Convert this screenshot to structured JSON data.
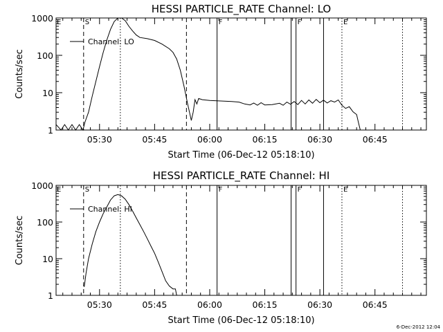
{
  "chart_data": [
    {
      "type": "line",
      "title": "HESSI PARTICLE_RATE Channel: LO",
      "xlabel": "Start Time (06-Dec-12 05:18:10)",
      "ylabel": "Counts/sec",
      "yscale": "log",
      "ylim": [
        1,
        1000
      ],
      "xlim": [
        "05:18:10",
        "06:59:00"
      ],
      "x_ticks": [
        "05:30",
        "05:45",
        "06:00",
        "06:15",
        "06:30",
        "06:45"
      ],
      "y_ticks": [
        "1",
        "10",
        "100",
        "1000"
      ],
      "legend": "top-left",
      "series": [
        {
          "name": "Channel: LO",
          "points": [
            [
              "05:18:10",
              1.4
            ],
            [
              "05:19:30",
              1.0
            ],
            [
              "05:20:30",
              1.4
            ],
            [
              "05:21:30",
              1.0
            ],
            [
              "05:22:30",
              1.4
            ],
            [
              "05:23:30",
              1.0
            ],
            [
              "05:24:30",
              1.4
            ],
            [
              "05:25:30",
              1.0
            ],
            [
              "05:26:00",
              1.6
            ],
            [
              "05:27:00",
              3.0
            ],
            [
              "05:28:00",
              8.0
            ],
            [
              "05:29:00",
              20
            ],
            [
              "05:30:00",
              50
            ],
            [
              "05:31:00",
              120
            ],
            [
              "05:32:00",
              260
            ],
            [
              "05:33:00",
              500
            ],
            [
              "05:34:00",
              800
            ],
            [
              "05:35:00",
              1000
            ],
            [
              "05:36:00",
              1000
            ],
            [
              "05:37:00",
              850
            ],
            [
              "05:38:00",
              600
            ],
            [
              "05:39:00",
              450
            ],
            [
              "05:40:00",
              350
            ],
            [
              "05:41:00",
              300
            ],
            [
              "05:43:00",
              280
            ],
            [
              "05:45:00",
              250
            ],
            [
              "05:47:00",
              200
            ],
            [
              "05:49:00",
              150
            ],
            [
              "05:50:00",
              120
            ],
            [
              "05:51:00",
              80
            ],
            [
              "05:52:00",
              40
            ],
            [
              "05:53:00",
              15
            ],
            [
              "05:54:00",
              5
            ],
            [
              "05:54:40",
              2.5
            ],
            [
              "05:55:00",
              1.8
            ],
            [
              "05:55:30",
              3.0
            ],
            [
              "05:56:00",
              6.5
            ],
            [
              "05:56:30",
              5.0
            ],
            [
              "05:57:00",
              7.0
            ],
            [
              "05:58:00",
              6.5
            ],
            [
              "06:00:00",
              6.2
            ],
            [
              "06:03:00",
              6.0
            ],
            [
              "06:06:00",
              5.8
            ],
            [
              "06:08:00",
              5.6
            ],
            [
              "06:09:30",
              5.0
            ],
            [
              "06:11:00",
              4.7
            ],
            [
              "06:12:00",
              5.3
            ],
            [
              "06:13:00",
              4.6
            ],
            [
              "06:14:00",
              5.4
            ],
            [
              "06:15:00",
              4.7
            ],
            [
              "06:17:00",
              4.8
            ],
            [
              "06:19:00",
              5.2
            ],
            [
              "06:20:00",
              4.6
            ],
            [
              "06:21:00",
              5.6
            ],
            [
              "06:22:00",
              4.9
            ],
            [
              "06:23:00",
              5.8
            ],
            [
              "06:24:00",
              4.8
            ],
            [
              "06:25:00",
              6.2
            ],
            [
              "06:26:00",
              5.0
            ],
            [
              "06:27:00",
              6.4
            ],
            [
              "06:28:00",
              5.2
            ],
            [
              "06:29:00",
              6.6
            ],
            [
              "06:30:00",
              5.4
            ],
            [
              "06:31:00",
              6.3
            ],
            [
              "06:32:00",
              5.3
            ],
            [
              "06:33:00",
              6.1
            ],
            [
              "06:34:00",
              5.6
            ],
            [
              "06:35:00",
              6.4
            ],
            [
              "06:36:00",
              4.6
            ],
            [
              "06:37:00",
              3.8
            ],
            [
              "06:38:00",
              4.2
            ],
            [
              "06:39:00",
              3.1
            ],
            [
              "06:40:00",
              2.6
            ],
            [
              "06:40:30",
              1.6
            ],
            [
              "06:41:00",
              1.0
            ]
          ]
        }
      ],
      "markers": [
        {
          "time": "05:25:40",
          "style": "dashed",
          "label": "S"
        },
        {
          "time": "05:35:40",
          "style": "dotted",
          "label": ""
        },
        {
          "time": "05:53:40",
          "style": "dashed",
          "label": ""
        },
        {
          "time": "06:02:00",
          "style": "solid",
          "label": "F"
        },
        {
          "time": "06:22:10",
          "style": "solid",
          "label": ""
        },
        {
          "time": "06:23:30",
          "style": "solid",
          "label": "F"
        },
        {
          "time": "06:31:00",
          "style": "solid",
          "label": ""
        },
        {
          "time": "06:36:00",
          "style": "dotted",
          "label": "E"
        },
        {
          "time": "06:52:30",
          "style": "dotted",
          "label": ""
        }
      ]
    },
    {
      "type": "line",
      "title": "HESSI PARTICLE_RATE Channel: HI",
      "xlabel": "Start Time (06-Dec-12 05:18:10)",
      "ylabel": "Counts/sec",
      "yscale": "log",
      "ylim": [
        1,
        1000
      ],
      "xlim": [
        "05:18:10",
        "06:59:00"
      ],
      "x_ticks": [
        "05:30",
        "05:45",
        "06:00",
        "06:15",
        "06:30",
        "06:45"
      ],
      "y_ticks": [
        "1",
        "10",
        "100",
        "1000"
      ],
      "legend": "top-left",
      "series": [
        {
          "name": "Channel: HI",
          "points": [
            [
              "05:25:50",
              1.7
            ],
            [
              "05:26:20",
              4.0
            ],
            [
              "05:27:00",
              10
            ],
            [
              "05:28:00",
              25
            ],
            [
              "05:29:00",
              55
            ],
            [
              "05:30:00",
              100
            ],
            [
              "05:31:00",
              170
            ],
            [
              "05:32:00",
              260
            ],
            [
              "05:33:00",
              400
            ],
            [
              "05:34:00",
              520
            ],
            [
              "05:35:00",
              560
            ],
            [
              "05:36:00",
              520
            ],
            [
              "05:37:00",
              420
            ],
            [
              "05:38:00",
              300
            ],
            [
              "05:39:00",
              200
            ],
            [
              "05:40:00",
              130
            ],
            [
              "05:41:00",
              85
            ],
            [
              "05:42:00",
              55
            ],
            [
              "05:43:00",
              35
            ],
            [
              "05:44:00",
              22
            ],
            [
              "05:45:00",
              14
            ],
            [
              "05:46:00",
              8
            ],
            [
              "05:47:00",
              4.5
            ],
            [
              "05:48:00",
              2.5
            ],
            [
              "05:49:00",
              1.8
            ],
            [
              "05:50:00",
              1.5
            ],
            [
              "05:50:40",
              1.5
            ],
            [
              "05:51:00",
              1.0
            ]
          ]
        }
      ],
      "markers": [
        {
          "time": "05:25:40",
          "style": "dashed",
          "label": "S"
        },
        {
          "time": "05:35:40",
          "style": "dotted",
          "label": ""
        },
        {
          "time": "05:53:40",
          "style": "dashed",
          "label": ""
        },
        {
          "time": "06:02:00",
          "style": "solid",
          "label": "F"
        },
        {
          "time": "06:22:10",
          "style": "solid",
          "label": ""
        },
        {
          "time": "06:23:30",
          "style": "solid",
          "label": "F"
        },
        {
          "time": "06:31:00",
          "style": "solid",
          "label": ""
        },
        {
          "time": "06:36:00",
          "style": "dotted",
          "label": "E"
        },
        {
          "time": "06:52:30",
          "style": "dotted",
          "label": ""
        }
      ]
    }
  ],
  "footer": {
    "timestamp": "6-Dec-2012 12:04"
  }
}
